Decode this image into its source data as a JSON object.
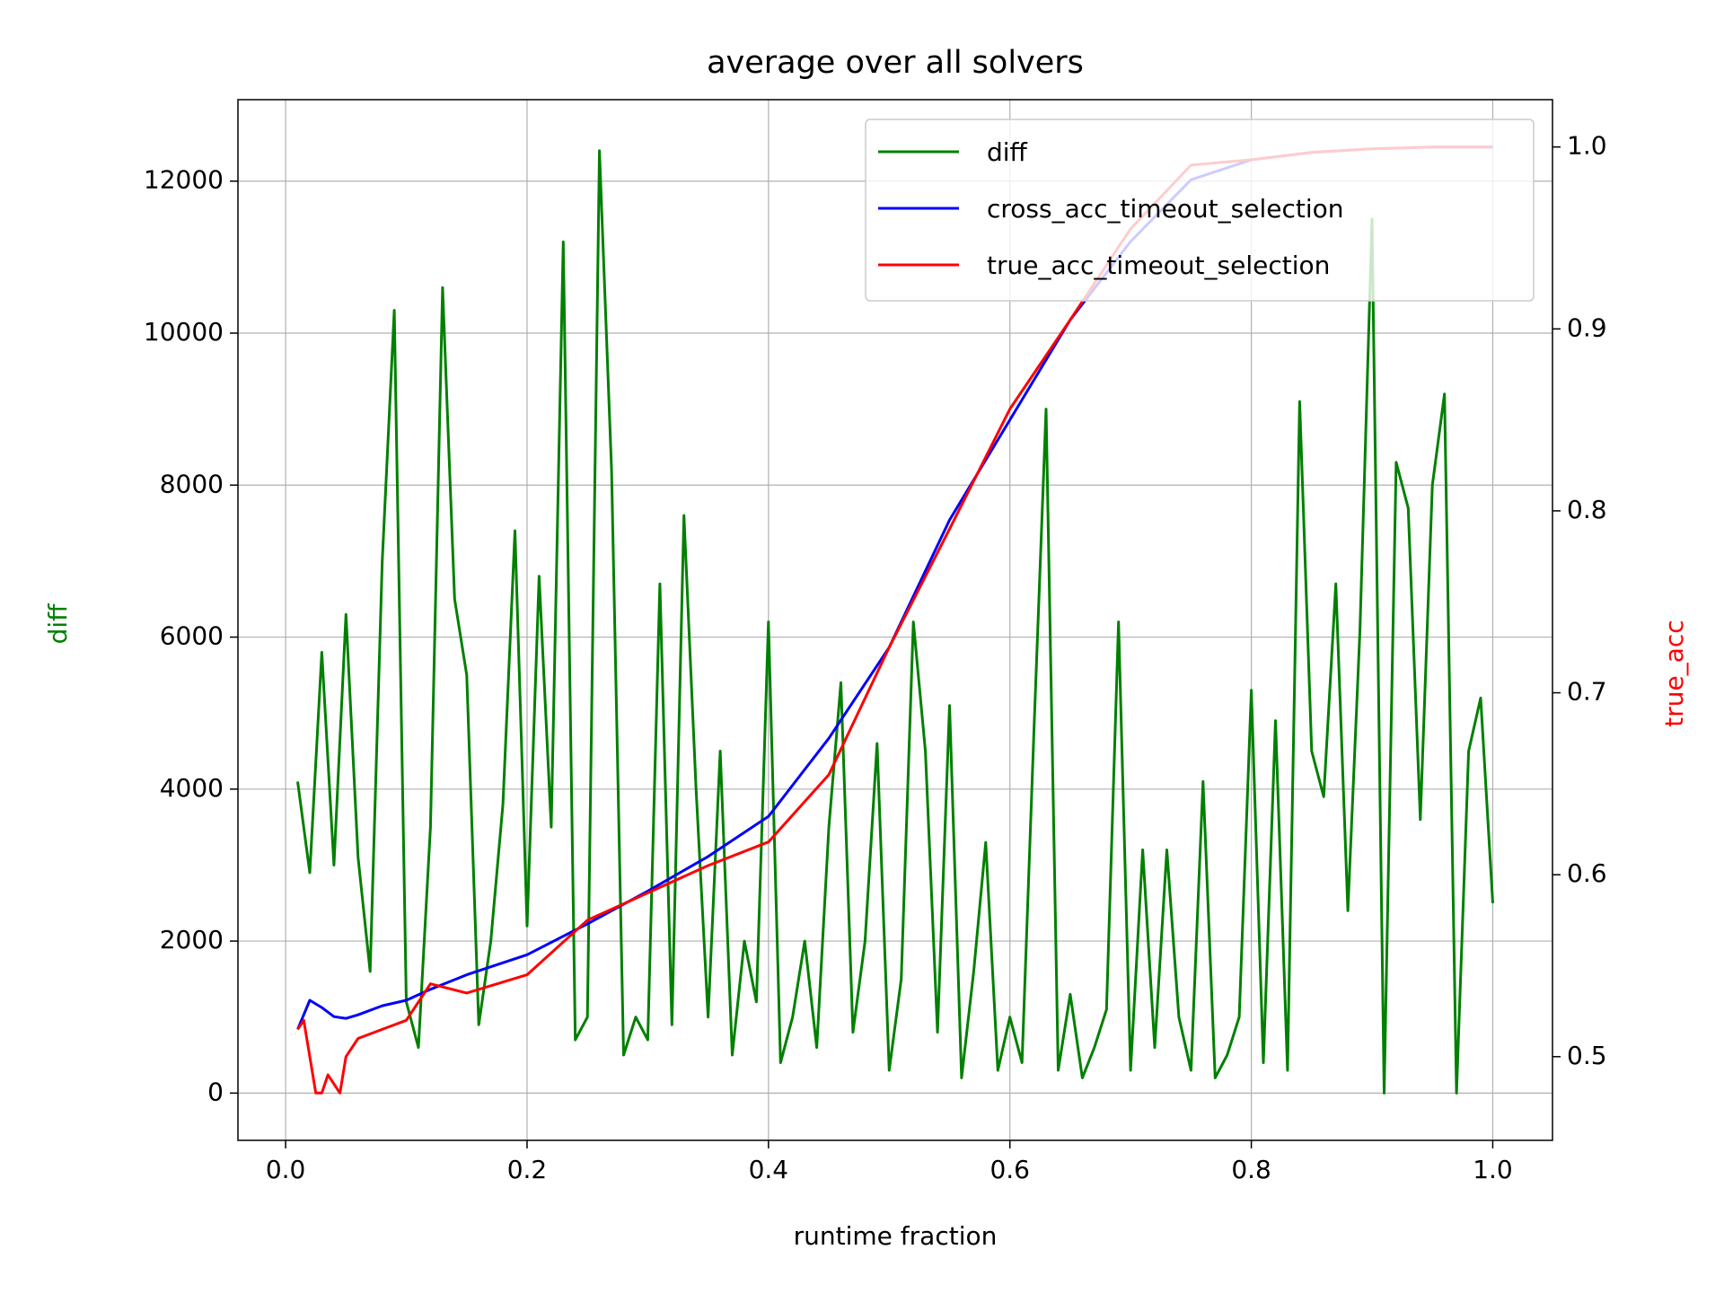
{
  "chart_data": {
    "type": "line",
    "title": "average over all solvers",
    "xlabel": "runtime fraction",
    "ylabel": "diff",
    "y2label": "true_acc",
    "ylabel_color": "green",
    "y2label_color": "red",
    "xlim": [
      -0.0395,
      1.0495
    ],
    "ylim": [
      -622,
      13072
    ],
    "y2lim": [
      0.454,
      1.026
    ],
    "xticks": [
      {
        "value": 0,
        "label": "0.0"
      },
      0.2,
      0.4,
      0.6,
      0.8,
      {
        "value": 1,
        "label": "1.0"
      }
    ],
    "yticks": [
      0,
      2000,
      4000,
      6000,
      8000,
      10000,
      12000
    ],
    "y2ticks": [
      0.5,
      0.6,
      0.7,
      0.8,
      0.9,
      {
        "value": 1,
        "label": "1.0"
      }
    ],
    "grid": true,
    "legend": "upper right",
    "series": [
      {
        "name": "diff",
        "color": "green",
        "axis": "y",
        "x": [
          0.01,
          0.02,
          0.03,
          0.04,
          0.05,
          0.06,
          0.07,
          0.08,
          0.09,
          0.1,
          0.11,
          0.12,
          0.13,
          0.14,
          0.15,
          0.16,
          0.17,
          0.18,
          0.19,
          0.2,
          0.21,
          0.22,
          0.23,
          0.24,
          0.25,
          0.26,
          0.27,
          0.28,
          0.29,
          0.3,
          0.31,
          0.32,
          0.33,
          0.34,
          0.35,
          0.36,
          0.37,
          0.38,
          0.39,
          0.4,
          0.41,
          0.42,
          0.43,
          0.44,
          0.45,
          0.46,
          0.47,
          0.48,
          0.49,
          0.5,
          0.51,
          0.52,
          0.53,
          0.54,
          0.55,
          0.56,
          0.57,
          0.58,
          0.59,
          0.6,
          0.61,
          0.62,
          0.63,
          0.64,
          0.65,
          0.66,
          0.67,
          0.68,
          0.69,
          0.7,
          0.71,
          0.72,
          0.73,
          0.74,
          0.75,
          0.76,
          0.77,
          0.78,
          0.79,
          0.8,
          0.81,
          0.82,
          0.83,
          0.84,
          0.85,
          0.86,
          0.87,
          0.88,
          0.89,
          0.9,
          0.91,
          0.92,
          0.93,
          0.94,
          0.95,
          0.96,
          0.97,
          0.98,
          0.99,
          1.0
        ],
        "values": [
          4100,
          2900,
          5800,
          3000,
          6300,
          3100,
          1600,
          7000,
          10300,
          1200,
          600,
          3500,
          10600,
          6500,
          5500,
          900,
          2000,
          3800,
          7400,
          2200,
          6800,
          3500,
          11200,
          700,
          1000,
          12400,
          8200,
          500,
          1000,
          700,
          6700,
          900,
          7600,
          4000,
          1000,
          4500,
          500,
          2000,
          1200,
          6200,
          400,
          1000,
          2000,
          600,
          3500,
          5400,
          800,
          2000,
          4600,
          300,
          1500,
          6200,
          4500,
          800,
          5100,
          200,
          1600,
          3300,
          300,
          1000,
          400,
          4800,
          9000,
          300,
          1300,
          200,
          600,
          1100,
          6200,
          300,
          3200,
          600,
          3200,
          1000,
          300,
          4100,
          200,
          500,
          1000,
          5300,
          400,
          4900,
          300,
          9100,
          4500,
          3900,
          6700,
          2400,
          6100,
          11500,
          0,
          8300,
          7700,
          3600,
          8000,
          9200,
          0,
          4500,
          5200,
          2500
        ]
      },
      {
        "name": "cross_acc_timeout_selection",
        "color": "blue",
        "axis": "y2",
        "x": [
          0.01,
          0.02,
          0.03,
          0.04,
          0.05,
          0.06,
          0.08,
          0.1,
          0.12,
          0.15,
          0.2,
          0.25,
          0.3,
          0.35,
          0.4,
          0.45,
          0.5,
          0.55,
          0.6,
          0.65,
          0.7,
          0.75,
          0.8,
          0.85,
          0.9,
          0.95,
          1.0
        ],
        "values": [
          0.515,
          0.531,
          0.527,
          0.522,
          0.521,
          0.523,
          0.528,
          0.531,
          0.537,
          0.545,
          0.556,
          0.573,
          0.591,
          0.61,
          0.632,
          0.675,
          0.725,
          0.795,
          0.85,
          0.905,
          0.948,
          0.982,
          0.993,
          0.997,
          0.999,
          1.0,
          1.0
        ]
      },
      {
        "name": "true_acc_timeout_selection",
        "color": "red",
        "axis": "y2",
        "x": [
          0.01,
          0.015,
          0.02,
          0.025,
          0.03,
          0.035,
          0.04,
          0.045,
          0.05,
          0.06,
          0.08,
          0.1,
          0.12,
          0.15,
          0.2,
          0.25,
          0.3,
          0.35,
          0.4,
          0.45,
          0.5,
          0.55,
          0.6,
          0.65,
          0.7,
          0.75,
          0.8,
          0.85,
          0.9,
          0.95,
          1.0
        ],
        "values": [
          0.515,
          0.52,
          0.5,
          0.48,
          0.48,
          0.49,
          0.485,
          0.48,
          0.5,
          0.51,
          0.515,
          0.52,
          0.54,
          0.535,
          0.545,
          0.575,
          0.59,
          0.605,
          0.618,
          0.655,
          0.725,
          0.79,
          0.856,
          0.905,
          0.955,
          0.99,
          0.993,
          0.997,
          0.999,
          1.0,
          1.0
        ]
      }
    ]
  }
}
